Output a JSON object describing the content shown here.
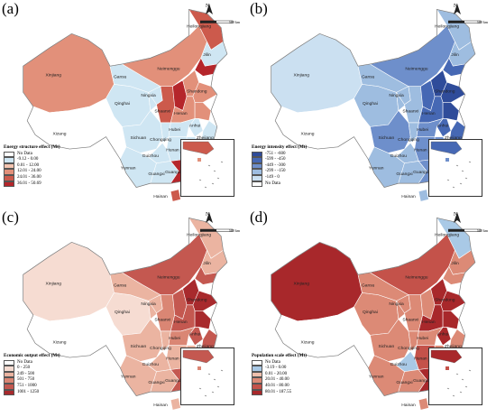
{
  "panels": [
    {
      "label": "(a)",
      "legend_title": "Energy structure effect (Mt)",
      "classes": [
        {
          "label": "No Data",
          "color": "#ffffff"
        },
        {
          "label": "-9.12 - 0.00",
          "color": "#cfe6f3"
        },
        {
          "label": "0.01 - 12.00",
          "color": "#f3c4b0"
        },
        {
          "label": "12.01 - 24.00",
          "color": "#e2907a"
        },
        {
          "label": "24.01 - 36.00",
          "color": "#cc5a4c"
        },
        {
          "label": "36.01 - 50.69",
          "color": "#b5262b"
        }
      ],
      "base_color": "#cfe6f3",
      "accent_colors": [
        "#e2907a",
        "#cc5a4c",
        "#b5262b"
      ]
    },
    {
      "label": "(b)",
      "legend_title": "Energy intensity effect (Mt)",
      "classes": [
        {
          "label": "-751 - -600",
          "color": "#2f4c9a"
        },
        {
          "label": "-599 - -450",
          "color": "#4668b4"
        },
        {
          "label": "-449 - -300",
          "color": "#6e8fcb"
        },
        {
          "label": "-299 - -150",
          "color": "#9ebde0"
        },
        {
          "label": "-149 - 0",
          "color": "#cbe0f1"
        },
        {
          "label": "No Data",
          "color": "#ffffff"
        }
      ],
      "base_color": "#9ebde0",
      "accent_colors": [
        "#6e8fcb",
        "#4668b4",
        "#2f4c9a"
      ]
    },
    {
      "label": "(c)",
      "legend_title": "Economic output effect (Mt)",
      "classes": [
        {
          "label": "No Data",
          "color": "#ffffff"
        },
        {
          "label": "0 - 250",
          "color": "#f6dcd2"
        },
        {
          "label": "249 - 500",
          "color": "#ebb4a1"
        },
        {
          "label": "501 - 750",
          "color": "#da8674"
        },
        {
          "label": "751 - 1000",
          "color": "#c45850"
        },
        {
          "label": "1001 - 1250",
          "color": "#a82a2d"
        }
      ],
      "base_color": "#ebb4a1",
      "accent_colors": [
        "#da8674",
        "#c45850",
        "#a82a2d"
      ]
    },
    {
      "label": "(d)",
      "legend_title": "Population scale effect (Mt)",
      "classes": [
        {
          "label": "No Data",
          "color": "#ffffff"
        },
        {
          "label": "-3.19 - 0.00",
          "color": "#a9c9e6"
        },
        {
          "label": "0.01 - 20.00",
          "color": "#f0c0ad"
        },
        {
          "label": "20.01 - 40.00",
          "color": "#dc8a76"
        },
        {
          "label": "40.01 - 80.00",
          "color": "#c4524a"
        },
        {
          "label": "80.01 - 187.55",
          "color": "#a8282b"
        }
      ],
      "base_color": "#dc8a76",
      "accent_colors": [
        "#c4524a",
        "#a8282b",
        "#a8282b"
      ]
    }
  ],
  "map_labels": {
    "heilongjiang": "Heilongjiang",
    "jilin": "Jilin",
    "neimenggu": "Neimenggu",
    "xinjiang": "Xinjiang",
    "gansu": "Gansu",
    "qinghai": "Qinghai",
    "ningxia": "Ningxia",
    "xizang": "Xizang",
    "shaanxi": "Shaanxi",
    "henan": "Henan",
    "shandong": "Shandong",
    "hubei": "Hubei",
    "anhui": "Anhui",
    "sichuan": "Sichuan",
    "chongqing": "Chongqing",
    "zhejiang": "Zhejiang",
    "hunan": "Hunan",
    "jiangxi": "Jiangxi",
    "guizhou": "Guizhou",
    "fujian": "Fujian",
    "yunnan": "Yunnan",
    "guangxi": "Guangxi",
    "guangdong": "Guangdong",
    "hainan": "Hainan"
  },
  "north_label": "N",
  "scale_labels": {
    "zero": "0",
    "distance": "500 km"
  }
}
